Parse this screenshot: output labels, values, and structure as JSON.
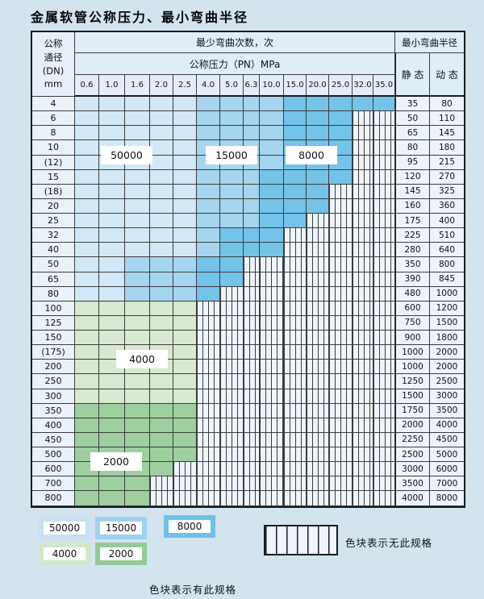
{
  "title": "金属软管公称压力、最小弯曲半径",
  "table": {
    "corner_lines": [
      "公称",
      "通径",
      "(DN)",
      "mm"
    ],
    "bend_header": "最少弯曲次数，次",
    "pressure_header": "公称压力（PN）MPa",
    "radius_header": "最小弯曲半径",
    "static_label": "静 态",
    "dynamic_label": "动 态",
    "pressures": [
      "0.6",
      "1.0",
      "1.6",
      "2.0",
      "2.5",
      "4.0",
      "5.0",
      "6.3",
      "10.0",
      "15.0",
      "20.0",
      "25.0",
      "32.0",
      "35.0"
    ],
    "zone_fills": {
      "1": {
        "label": "50000",
        "color": "#d2e8f7"
      },
      "2": {
        "label": "15000",
        "color": "#a6d5ef"
      },
      "3": {
        "label": "8000",
        "color": "#74c3e9"
      },
      "4": {
        "label": "4000",
        "color": "#d7e9d0"
      },
      "5": {
        "label": "2000",
        "color": "#9dcf9f"
      }
    },
    "rows": [
      {
        "dn": "4",
        "zones": "11111222233333",
        "static": "35",
        "dynamic": "80"
      },
      {
        "dn": "6",
        "zones": "11111222233300",
        "static": "50",
        "dynamic": "110"
      },
      {
        "dn": "8",
        "zones": "11111222233300",
        "static": "65",
        "dynamic": "145"
      },
      {
        "dn": "10",
        "zones": "11111222233300",
        "static": "80",
        "dynamic": "180"
      },
      {
        "dn": "(12)",
        "zones": "11111222233300",
        "static": "95",
        "dynamic": "215"
      },
      {
        "dn": "15",
        "zones": "11111222333300",
        "static": "120",
        "dynamic": "270"
      },
      {
        "dn": "(18)",
        "zones": "11111222333000",
        "static": "145",
        "dynamic": "325"
      },
      {
        "dn": "20",
        "zones": "11111222333000",
        "static": "160",
        "dynamic": "360"
      },
      {
        "dn": "25",
        "zones": "11111222330000",
        "static": "175",
        "dynamic": "400"
      },
      {
        "dn": "32",
        "zones": "11111233300000",
        "static": "225",
        "dynamic": "510"
      },
      {
        "dn": "40",
        "zones": "11111233300000",
        "static": "280",
        "dynamic": "640"
      },
      {
        "dn": "50",
        "zones": "11222330000000",
        "static": "350",
        "dynamic": "800"
      },
      {
        "dn": "65",
        "zones": "11222330000000",
        "static": "390",
        "dynamic": "845"
      },
      {
        "dn": "80",
        "zones": "11222300000000",
        "static": "480",
        "dynamic": "1000"
      },
      {
        "dn": "100",
        "zones": "44444000000000",
        "static": "600",
        "dynamic": "1200"
      },
      {
        "dn": "125",
        "zones": "44444000000000",
        "static": "750",
        "dynamic": "1500"
      },
      {
        "dn": "150",
        "zones": "44444000000000",
        "static": "900",
        "dynamic": "1800"
      },
      {
        "dn": "(175)",
        "zones": "44444000000000",
        "static": "1000",
        "dynamic": "2000"
      },
      {
        "dn": "200",
        "zones": "44444000000000",
        "static": "1000",
        "dynamic": "2000"
      },
      {
        "dn": "250",
        "zones": "44444000000000",
        "static": "1250",
        "dynamic": "2500"
      },
      {
        "dn": "300",
        "zones": "44444000000000",
        "static": "1500",
        "dynamic": "3000"
      },
      {
        "dn": "350",
        "zones": "55555000000000",
        "static": "1750",
        "dynamic": "3500"
      },
      {
        "dn": "400",
        "zones": "55555000000000",
        "static": "2000",
        "dynamic": "4000"
      },
      {
        "dn": "450",
        "zones": "55555000000000",
        "static": "2250",
        "dynamic": "4500"
      },
      {
        "dn": "500",
        "zones": "55555000000000",
        "static": "2500",
        "dynamic": "5000"
      },
      {
        "dn": "600",
        "zones": "55550000000000",
        "static": "3000",
        "dynamic": "6000"
      },
      {
        "dn": "700",
        "zones": "55500000000000",
        "static": "3500",
        "dynamic": "7000"
      },
      {
        "dn": "800",
        "zones": "55500000000000",
        "static": "4000",
        "dynamic": "8000"
      }
    ],
    "zone_labels": [
      "50000",
      "15000",
      "8000",
      "4000",
      "2000"
    ]
  },
  "legend": {
    "items": [
      {
        "label": "50000",
        "color": "#c7e2f4"
      },
      {
        "label": "15000",
        "color": "#9fd2ee"
      },
      {
        "label": "8000",
        "color": "#6fc0e7"
      },
      {
        "label": "4000",
        "color": "#d3e7cb"
      },
      {
        "label": "2000",
        "color": "#93cb96"
      }
    ],
    "has_spec_text": "色块表示有此规格",
    "no_spec_text": "色块表示无此规格"
  }
}
